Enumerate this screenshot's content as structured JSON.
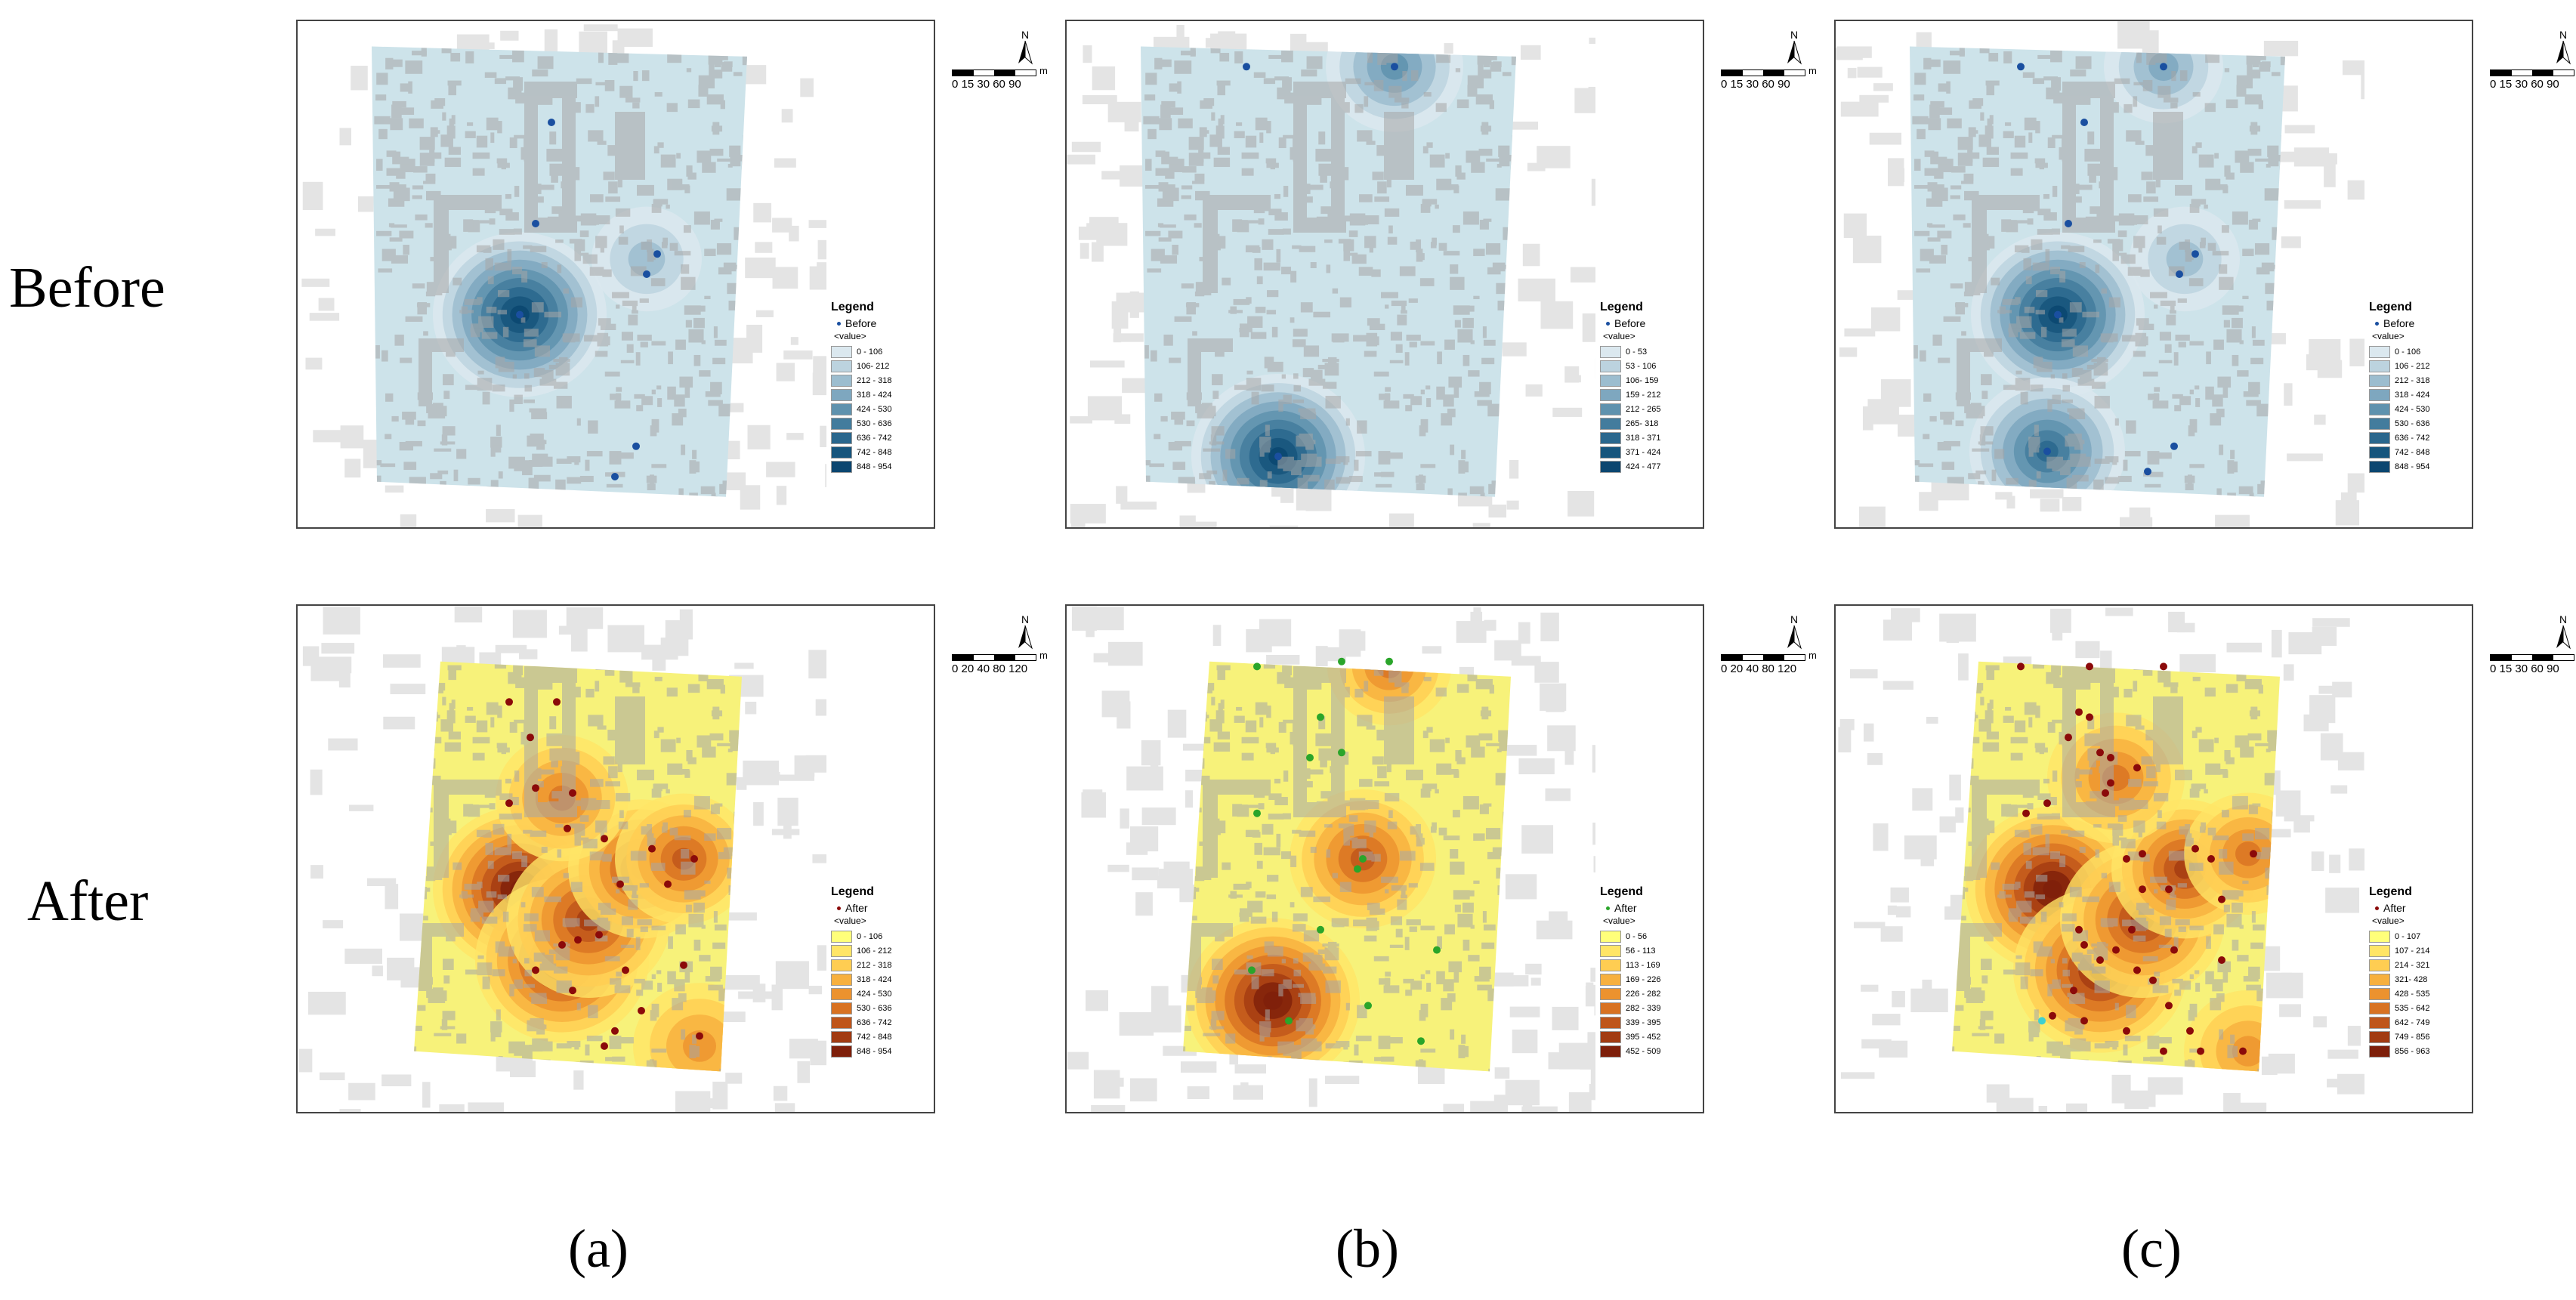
{
  "row_labels": [
    "Before",
    "After"
  ],
  "column_labels": [
    "(a)",
    "(b)",
    "(c)"
  ],
  "panels": [
    {
      "id": "a-before",
      "theme": "blue",
      "legend_title": "Legend",
      "series_name": "Before",
      "field": "<value>",
      "dot_color": "#1a4fa0",
      "classes": [
        "0 - 106",
        "106- 212",
        "212 - 318",
        "318 - 424",
        "424 - 530",
        "530 - 636",
        "636 - 742",
        "742 - 848",
        "848 - 954"
      ],
      "points": [
        [
          0.48,
          0.2
        ],
        [
          0.45,
          0.4
        ],
        [
          0.68,
          0.46
        ],
        [
          0.66,
          0.5
        ],
        [
          0.42,
          0.58
        ],
        [
          0.64,
          0.84
        ],
        [
          0.6,
          0.9
        ]
      ],
      "hotspots": [
        [
          0.42,
          0.58,
          1.0,
          1.0
        ],
        [
          0.66,
          0.47,
          0.35,
          0.3
        ]
      ],
      "scale_labels": "0 15 30   60   90",
      "scale_unit": "m"
    },
    {
      "id": "b-before",
      "theme": "blue",
      "legend_title": "Legend",
      "series_name": "Before",
      "field": "<value>",
      "dot_color": "#1a4fa0",
      "classes": [
        "0 - 53",
        "53 - 106",
        "106- 159",
        "159 - 212",
        "212 - 265",
        "265- 318",
        "318 - 371",
        "371 - 424",
        "424 - 477"
      ],
      "points": [
        [
          0.34,
          0.09
        ],
        [
          0.62,
          0.09
        ],
        [
          0.4,
          0.86
        ]
      ],
      "hotspots": [
        [
          0.4,
          0.86,
          1.0,
          1.0
        ],
        [
          0.62,
          0.09,
          0.6,
          0.6
        ]
      ],
      "scale_labels": "0 15 30   60   90",
      "scale_unit": "m"
    },
    {
      "id": "c-before",
      "theme": "blue",
      "legend_title": "Legend",
      "series_name": "Before",
      "field": "<value>",
      "dot_color": "#1a4fa0",
      "classes": [
        "0 - 106",
        "106 - 212",
        "212 - 318",
        "318 - 424",
        "424 - 530",
        "530 - 636",
        "636 - 742",
        "742 - 848",
        "848 - 954"
      ],
      "points": [
        [
          0.35,
          0.09
        ],
        [
          0.62,
          0.09
        ],
        [
          0.47,
          0.2
        ],
        [
          0.44,
          0.4
        ],
        [
          0.68,
          0.46
        ],
        [
          0.65,
          0.5
        ],
        [
          0.42,
          0.58
        ],
        [
          0.4,
          0.85
        ],
        [
          0.64,
          0.84
        ],
        [
          0.59,
          0.89
        ]
      ],
      "hotspots": [
        [
          0.42,
          0.58,
          1.0,
          1.0
        ],
        [
          0.4,
          0.85,
          0.75,
          0.8
        ],
        [
          0.62,
          0.09,
          0.4,
          0.4
        ],
        [
          0.66,
          0.47,
          0.35,
          0.3
        ]
      ],
      "scale_labels": "0 15 30   60   90",
      "scale_unit": "m"
    },
    {
      "id": "a-after",
      "theme": "yellow",
      "legend_title": "Legend",
      "series_name": "After",
      "field": "<value>",
      "dot_color": "#8b0a0a",
      "classes": [
        "0 - 106",
        "106 - 212",
        "212 - 318",
        "318 - 424",
        "424 - 530",
        "530 - 636",
        "636 - 742",
        "742 - 848",
        "848 - 954"
      ],
      "points": [
        [
          0.4,
          0.19
        ],
        [
          0.49,
          0.19
        ],
        [
          0.44,
          0.26
        ],
        [
          0.45,
          0.36
        ],
        [
          0.4,
          0.39
        ],
        [
          0.52,
          0.37
        ],
        [
          0.51,
          0.44
        ],
        [
          0.58,
          0.46
        ],
        [
          0.67,
          0.48
        ],
        [
          0.75,
          0.5
        ],
        [
          0.7,
          0.55
        ],
        [
          0.61,
          0.55
        ],
        [
          0.57,
          0.65
        ],
        [
          0.53,
          0.66
        ],
        [
          0.5,
          0.67
        ],
        [
          0.45,
          0.72
        ],
        [
          0.52,
          0.76
        ],
        [
          0.62,
          0.72
        ],
        [
          0.65,
          0.8
        ],
        [
          0.6,
          0.84
        ],
        [
          0.58,
          0.87
        ],
        [
          0.73,
          0.71
        ],
        [
          0.76,
          0.85
        ]
      ],
      "hotspots": [
        [
          0.42,
          0.56,
          1.0,
          1.0
        ],
        [
          0.5,
          0.7,
          0.9,
          1.0
        ],
        [
          0.55,
          0.62,
          0.8,
          0.9
        ],
        [
          0.65,
          0.52,
          0.8,
          0.7
        ],
        [
          0.73,
          0.5,
          0.7,
          0.6
        ],
        [
          0.5,
          0.38,
          0.5,
          0.55
        ],
        [
          0.76,
          0.87,
          0.45,
          0.55
        ]
      ],
      "scale_labels": "0 20 40   80   120",
      "scale_unit": "m"
    },
    {
      "id": "b-after",
      "theme": "yellow",
      "legend_title": "Legend",
      "series_name": "After",
      "field": "<value>",
      "dot_color": "#2aa52a",
      "classes": [
        "0 - 56",
        "56 - 113",
        "113 - 169",
        "169 - 226",
        "226 - 282",
        "282 - 339",
        "339 - 395",
        "395 - 452",
        "452 - 509"
      ],
      "points": [
        [
          0.36,
          0.12
        ],
        [
          0.52,
          0.11
        ],
        [
          0.61,
          0.11
        ],
        [
          0.48,
          0.22
        ],
        [
          0.52,
          0.29
        ],
        [
          0.46,
          0.3
        ],
        [
          0.36,
          0.41
        ],
        [
          0.56,
          0.5
        ],
        [
          0.55,
          0.52
        ],
        [
          0.48,
          0.64
        ],
        [
          0.7,
          0.68
        ],
        [
          0.35,
          0.72
        ],
        [
          0.42,
          0.82
        ],
        [
          0.57,
          0.79
        ],
        [
          0.67,
          0.86
        ]
      ],
      "hotspots": [
        [
          0.39,
          0.78,
          1.0,
          1.0
        ],
        [
          0.56,
          0.5,
          0.65,
          0.7
        ],
        [
          0.61,
          0.12,
          0.5,
          0.45
        ]
      ],
      "scale_labels": "0 20 40   80   120",
      "scale_unit": "m"
    },
    {
      "id": "c-after",
      "theme": "yellow",
      "legend_title": "Legend",
      "series_name": "After",
      "field": "<value>",
      "dot_color": "#8b0a0a",
      "classes": [
        "0 - 107",
        "107 - 214",
        "214 - 321",
        "321- 428",
        "428 - 535",
        "535 - 642",
        "642 - 749",
        "749 - 856",
        "856 - 963"
      ],
      "points": [
        [
          0.35,
          0.12
        ],
        [
          0.48,
          0.12
        ],
        [
          0.62,
          0.12
        ],
        [
          0.46,
          0.21
        ],
        [
          0.48,
          0.22
        ],
        [
          0.44,
          0.26
        ],
        [
          0.5,
          0.29
        ],
        [
          0.52,
          0.3
        ],
        [
          0.52,
          0.35
        ],
        [
          0.57,
          0.32
        ],
        [
          0.51,
          0.37
        ],
        [
          0.36,
          0.41
        ],
        [
          0.4,
          0.39
        ],
        [
          0.55,
          0.5
        ],
        [
          0.58,
          0.49
        ],
        [
          0.68,
          0.48
        ],
        [
          0.71,
          0.5
        ],
        [
          0.79,
          0.49
        ],
        [
          0.73,
          0.58
        ],
        [
          0.63,
          0.56
        ],
        [
          0.58,
          0.56
        ],
        [
          0.56,
          0.64
        ],
        [
          0.46,
          0.64
        ],
        [
          0.47,
          0.67
        ],
        [
          0.53,
          0.68
        ],
        [
          0.5,
          0.7
        ],
        [
          0.57,
          0.72
        ],
        [
          0.6,
          0.74
        ],
        [
          0.45,
          0.76
        ],
        [
          0.41,
          0.81
        ],
        [
          0.47,
          0.82
        ],
        [
          0.63,
          0.79
        ],
        [
          0.55,
          0.84
        ],
        [
          0.67,
          0.84
        ],
        [
          0.62,
          0.88
        ],
        [
          0.69,
          0.88
        ],
        [
          0.73,
          0.7
        ],
        [
          0.64,
          0.68
        ],
        [
          0.77,
          0.88
        ]
      ],
      "hotspots": [
        [
          0.41,
          0.56,
          1.0,
          1.0
        ],
        [
          0.5,
          0.72,
          0.9,
          1.0
        ],
        [
          0.58,
          0.62,
          0.8,
          0.9
        ],
        [
          0.66,
          0.52,
          0.8,
          0.7
        ],
        [
          0.53,
          0.34,
          0.55,
          0.6
        ],
        [
          0.78,
          0.49,
          0.6,
          0.5
        ],
        [
          0.78,
          0.88,
          0.45,
          0.5
        ]
      ],
      "scale_labels": "0 15 30   60   90",
      "scale_unit": "m",
      "extra_point": [
        0.39,
        0.82,
        "#3fd0d0"
      ]
    }
  ],
  "north_label": "N",
  "colors": {
    "blue_ramp": [
      "#dbe8ef",
      "#bcd3df",
      "#9cbdcf",
      "#7ea7bf",
      "#5f92ae",
      "#437c9d",
      "#2a678d",
      "#16557d",
      "#0b4670"
    ],
    "yellow_ramp": [
      "#ffff7a",
      "#ffe566",
      "#ffcd52",
      "#f7b03e",
      "#ec922e",
      "#d87222",
      "#bf551a",
      "#a23b12",
      "#7e1f0a"
    ],
    "blue_base": "#cde3ea",
    "yellow_base": "#f7f27a",
    "building": "#a7a7a7",
    "outer_building": "#e4e4e4"
  }
}
